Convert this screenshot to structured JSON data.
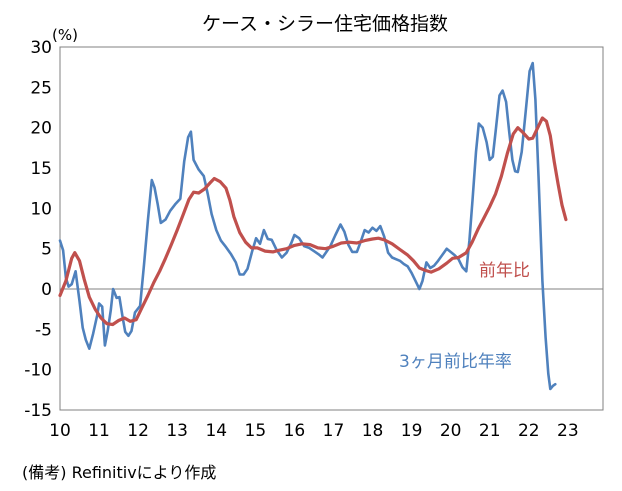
{
  "chart_data": {
    "type": "line",
    "title": "ケース・シラー住宅価格指数",
    "y_unit": "(%)",
    "ylim": [
      -15,
      30
    ],
    "y_ticks": [
      "30",
      "25",
      "20",
      "15",
      "10",
      "5",
      "0",
      "-5",
      "-10",
      "-15"
    ],
    "xlim": [
      2010,
      2023.9
    ],
    "x_ticks": [
      "10",
      "11",
      "12",
      "13",
      "14",
      "15",
      "16",
      "17",
      "18",
      "19",
      "20",
      "21",
      "22",
      "23"
    ],
    "grid": false,
    "series": [
      {
        "name": "前年比",
        "color": "#c0504d",
        "points": [
          [
            2010.0,
            -0.8
          ],
          [
            2010.15,
            1.0
          ],
          [
            2010.3,
            3.8
          ],
          [
            2010.38,
            4.5
          ],
          [
            2010.5,
            3.5
          ],
          [
            2010.62,
            1.2
          ],
          [
            2010.75,
            -1.0
          ],
          [
            2010.9,
            -2.5
          ],
          [
            2011.05,
            -3.6
          ],
          [
            2011.2,
            -4.3
          ],
          [
            2011.35,
            -4.4
          ],
          [
            2011.5,
            -3.9
          ],
          [
            2011.65,
            -3.6
          ],
          [
            2011.8,
            -4.0
          ],
          [
            2011.95,
            -3.8
          ],
          [
            2012.1,
            -2.3
          ],
          [
            2012.25,
            -0.8
          ],
          [
            2012.4,
            0.8
          ],
          [
            2012.55,
            2.2
          ],
          [
            2012.7,
            3.8
          ],
          [
            2012.85,
            5.5
          ],
          [
            2013.0,
            7.3
          ],
          [
            2013.15,
            9.2
          ],
          [
            2013.3,
            11.1
          ],
          [
            2013.42,
            12.0
          ],
          [
            2013.55,
            11.9
          ],
          [
            2013.7,
            12.4
          ],
          [
            2013.85,
            13.2
          ],
          [
            2013.95,
            13.7
          ],
          [
            2014.1,
            13.3
          ],
          [
            2014.25,
            12.5
          ],
          [
            2014.35,
            11.0
          ],
          [
            2014.45,
            9.0
          ],
          [
            2014.6,
            7.0
          ],
          [
            2014.75,
            5.8
          ],
          [
            2014.9,
            5.1
          ],
          [
            2015.05,
            5.1
          ],
          [
            2015.25,
            4.7
          ],
          [
            2015.45,
            4.6
          ],
          [
            2015.6,
            4.8
          ],
          [
            2015.8,
            5.0
          ],
          [
            2016.0,
            5.4
          ],
          [
            2016.2,
            5.6
          ],
          [
            2016.4,
            5.5
          ],
          [
            2016.6,
            5.1
          ],
          [
            2016.8,
            5.0
          ],
          [
            2017.0,
            5.3
          ],
          [
            2017.2,
            5.7
          ],
          [
            2017.4,
            5.8
          ],
          [
            2017.6,
            5.7
          ],
          [
            2017.8,
            6.0
          ],
          [
            2018.0,
            6.2
          ],
          [
            2018.15,
            6.3
          ],
          [
            2018.3,
            6.1
          ],
          [
            2018.5,
            5.6
          ],
          [
            2018.7,
            4.9
          ],
          [
            2018.9,
            4.2
          ],
          [
            2019.05,
            3.5
          ],
          [
            2019.2,
            2.6
          ],
          [
            2019.35,
            2.3
          ],
          [
            2019.5,
            2.1
          ],
          [
            2019.7,
            2.5
          ],
          [
            2019.9,
            3.2
          ],
          [
            2020.05,
            3.8
          ],
          [
            2020.2,
            3.9
          ],
          [
            2020.4,
            4.5
          ],
          [
            2020.55,
            5.8
          ],
          [
            2020.7,
            7.4
          ],
          [
            2020.85,
            8.8
          ],
          [
            2021.0,
            10.2
          ],
          [
            2021.15,
            11.8
          ],
          [
            2021.3,
            14.0
          ],
          [
            2021.45,
            16.8
          ],
          [
            2021.6,
            19.2
          ],
          [
            2021.72,
            20.0
          ],
          [
            2021.85,
            19.4
          ],
          [
            2022.0,
            18.6
          ],
          [
            2022.1,
            18.7
          ],
          [
            2022.25,
            20.2
          ],
          [
            2022.35,
            21.2
          ],
          [
            2022.45,
            20.8
          ],
          [
            2022.55,
            19.0
          ],
          [
            2022.65,
            15.8
          ],
          [
            2022.75,
            13.0
          ],
          [
            2022.85,
            10.4
          ],
          [
            2022.95,
            8.6
          ]
        ]
      },
      {
        "name": "3ヶ月前比年率",
        "color": "#4f81bd",
        "points": [
          [
            2010.0,
            6.0
          ],
          [
            2010.08,
            4.8
          ],
          [
            2010.15,
            1.4
          ],
          [
            2010.22,
            0.3
          ],
          [
            2010.3,
            0.6
          ],
          [
            2010.4,
            2.2
          ],
          [
            2010.5,
            -1.5
          ],
          [
            2010.58,
            -4.8
          ],
          [
            2010.66,
            -6.3
          ],
          [
            2010.75,
            -7.4
          ],
          [
            2010.85,
            -5.5
          ],
          [
            2010.95,
            -3.3
          ],
          [
            2011.0,
            -1.8
          ],
          [
            2011.08,
            -2.2
          ],
          [
            2011.15,
            -7.0
          ],
          [
            2011.22,
            -5.2
          ],
          [
            2011.3,
            -2.6
          ],
          [
            2011.36,
            0.0
          ],
          [
            2011.45,
            -1.1
          ],
          [
            2011.52,
            -1.0
          ],
          [
            2011.6,
            -3.4
          ],
          [
            2011.67,
            -5.3
          ],
          [
            2011.75,
            -5.8
          ],
          [
            2011.83,
            -5.2
          ],
          [
            2011.92,
            -2.9
          ],
          [
            2012.05,
            -2.1
          ],
          [
            2012.15,
            3.0
          ],
          [
            2012.25,
            8.5
          ],
          [
            2012.35,
            13.5
          ],
          [
            2012.42,
            12.6
          ],
          [
            2012.5,
            10.5
          ],
          [
            2012.58,
            8.2
          ],
          [
            2012.7,
            8.6
          ],
          [
            2012.82,
            9.7
          ],
          [
            2012.95,
            10.5
          ],
          [
            2013.08,
            11.2
          ],
          [
            2013.18,
            15.8
          ],
          [
            2013.28,
            18.8
          ],
          [
            2013.35,
            19.5
          ],
          [
            2013.42,
            16.0
          ],
          [
            2013.55,
            14.8
          ],
          [
            2013.68,
            14.0
          ],
          [
            2013.78,
            11.8
          ],
          [
            2013.88,
            9.3
          ],
          [
            2014.0,
            7.3
          ],
          [
            2014.12,
            6.0
          ],
          [
            2014.25,
            5.2
          ],
          [
            2014.38,
            4.3
          ],
          [
            2014.5,
            3.3
          ],
          [
            2014.6,
            1.8
          ],
          [
            2014.7,
            1.8
          ],
          [
            2014.8,
            2.5
          ],
          [
            2014.92,
            4.7
          ],
          [
            2015.02,
            6.3
          ],
          [
            2015.12,
            5.6
          ],
          [
            2015.22,
            7.3
          ],
          [
            2015.32,
            6.2
          ],
          [
            2015.42,
            6.1
          ],
          [
            2015.55,
            4.8
          ],
          [
            2015.68,
            3.9
          ],
          [
            2015.8,
            4.5
          ],
          [
            2015.92,
            5.7
          ],
          [
            2016.0,
            6.7
          ],
          [
            2016.12,
            6.3
          ],
          [
            2016.25,
            5.3
          ],
          [
            2016.38,
            5.1
          ],
          [
            2016.5,
            4.7
          ],
          [
            2016.62,
            4.3
          ],
          [
            2016.72,
            3.9
          ],
          [
            2016.82,
            4.6
          ],
          [
            2016.92,
            5.3
          ],
          [
            2017.05,
            6.7
          ],
          [
            2017.18,
            8.0
          ],
          [
            2017.28,
            7.1
          ],
          [
            2017.38,
            5.5
          ],
          [
            2017.48,
            4.6
          ],
          [
            2017.6,
            4.6
          ],
          [
            2017.7,
            5.9
          ],
          [
            2017.8,
            7.3
          ],
          [
            2017.9,
            7.0
          ],
          [
            2018.0,
            7.6
          ],
          [
            2018.1,
            7.2
          ],
          [
            2018.2,
            7.8
          ],
          [
            2018.3,
            6.5
          ],
          [
            2018.4,
            4.5
          ],
          [
            2018.5,
            3.9
          ],
          [
            2018.6,
            3.7
          ],
          [
            2018.7,
            3.5
          ],
          [
            2018.8,
            3.1
          ],
          [
            2018.9,
            2.8
          ],
          [
            2019.0,
            2.0
          ],
          [
            2019.1,
            1.0
          ],
          [
            2019.2,
            0.0
          ],
          [
            2019.28,
            1.0
          ],
          [
            2019.38,
            3.3
          ],
          [
            2019.48,
            2.6
          ],
          [
            2019.58,
            2.9
          ],
          [
            2019.68,
            3.5
          ],
          [
            2019.8,
            4.3
          ],
          [
            2019.9,
            5.0
          ],
          [
            2020.0,
            4.6
          ],
          [
            2020.1,
            4.2
          ],
          [
            2020.2,
            3.7
          ],
          [
            2020.3,
            2.7
          ],
          [
            2020.4,
            2.2
          ],
          [
            2020.48,
            6.0
          ],
          [
            2020.56,
            11.0
          ],
          [
            2020.65,
            17.0
          ],
          [
            2020.72,
            20.5
          ],
          [
            2020.82,
            20.0
          ],
          [
            2020.92,
            18.2
          ],
          [
            2021.0,
            16.0
          ],
          [
            2021.08,
            16.4
          ],
          [
            2021.15,
            19.5
          ],
          [
            2021.25,
            24.0
          ],
          [
            2021.33,
            24.6
          ],
          [
            2021.42,
            23.2
          ],
          [
            2021.5,
            19.5
          ],
          [
            2021.58,
            16.0
          ],
          [
            2021.65,
            14.6
          ],
          [
            2021.72,
            14.5
          ],
          [
            2021.82,
            17.0
          ],
          [
            2021.92,
            22.0
          ],
          [
            2022.02,
            27.0
          ],
          [
            2022.1,
            28.0
          ],
          [
            2022.17,
            23.5
          ],
          [
            2022.25,
            14.0
          ],
          [
            2022.35,
            1.0
          ],
          [
            2022.43,
            -6.0
          ],
          [
            2022.5,
            -10.5
          ],
          [
            2022.55,
            -12.4
          ],
          [
            2022.62,
            -12.0
          ],
          [
            2022.68,
            -11.8
          ]
        ]
      }
    ]
  },
  "annotations": {
    "yoy_label": "前年比",
    "annualized_label": "3ヶ月前比年率"
  },
  "footnote": "(備考) Refinitivにより作成"
}
